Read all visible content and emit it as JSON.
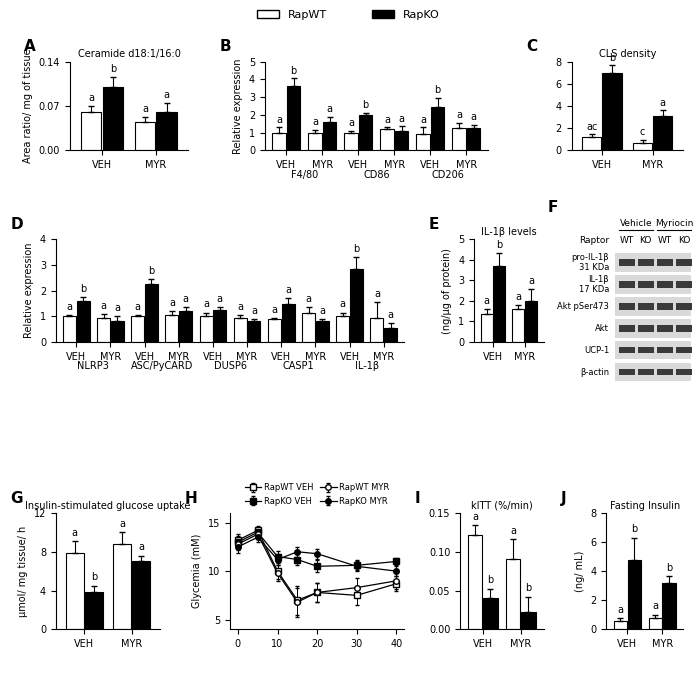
{
  "chart_data": [
    {
      "type": "bar",
      "panel": "A",
      "title": "Ceramide d18:1/16:0",
      "y_label": "Area ratio/ mg of tissue",
      "legend": "top",
      "categories": [
        "VEH",
        "MYR"
      ],
      "series": [
        {
          "name": "RapWT",
          "color": "#ffffff",
          "values": [
            0.06,
            0.045
          ],
          "errors": [
            0.01,
            0.008
          ],
          "letters": [
            "a",
            "a"
          ]
        },
        {
          "name": "RapKO",
          "color": "#000000",
          "values": [
            0.1,
            0.061
          ],
          "errors": [
            0.016,
            0.014
          ],
          "letters": [
            "b",
            "a"
          ]
        }
      ],
      "ylim": [
        0,
        0.14
      ],
      "yticks": [
        {
          "value": 0,
          "label": "0.00"
        },
        {
          "value": 0.07,
          "label": "0.07"
        },
        {
          "value": 0.14,
          "label": "0.14"
        }
      ]
    },
    {
      "type": "bar",
      "panel": "B",
      "y_label": "Relative expression",
      "categories": [
        "VEH",
        "MYR",
        "VEH",
        "MYR",
        "VEH",
        "MYR"
      ],
      "groups": [
        "F4/80",
        "CD86",
        "CD206"
      ],
      "series": [
        {
          "name": "RapWT",
          "color": "#ffffff",
          "values": [
            1.0,
            1.0,
            1.0,
            1.2,
            0.95,
            1.25
          ],
          "errors": [
            0.3,
            0.15,
            0.1,
            0.1,
            0.35,
            0.3
          ],
          "letters": [
            "a",
            "a",
            "a",
            "a",
            "a",
            "a"
          ]
        },
        {
          "name": "RapKO",
          "color": "#000000",
          "values": [
            3.6,
            1.6,
            2.0,
            1.1,
            2.45,
            1.25
          ],
          "errors": [
            0.45,
            0.3,
            0.1,
            0.25,
            0.5,
            0.2
          ],
          "letters": [
            "b",
            "a",
            "b",
            "a",
            "b",
            "a"
          ]
        }
      ],
      "ylim": [
        0,
        5
      ],
      "yticks": [
        0,
        1,
        2,
        3,
        4,
        5
      ]
    },
    {
      "type": "bar",
      "panel": "C",
      "title": "CLS density",
      "categories": [
        "VEH",
        "MYR"
      ],
      "series": [
        {
          "name": "RapWT",
          "color": "#ffffff",
          "values": [
            1.2,
            0.7
          ],
          "errors": [
            0.25,
            0.25
          ],
          "letters": [
            "ac",
            "c"
          ]
        },
        {
          "name": "RapKO",
          "color": "#000000",
          "values": [
            7.0,
            3.1
          ],
          "errors": [
            0.65,
            0.5
          ],
          "letters": [
            "b",
            "a"
          ]
        }
      ],
      "ylim": [
        0,
        8
      ],
      "yticks": [
        0,
        2,
        4,
        6,
        8
      ]
    },
    {
      "type": "bar",
      "panel": "D",
      "y_label": "Relative expression",
      "categories": [
        "VEH",
        "MYR",
        "VEH",
        "MYR",
        "VEH",
        "MYR",
        "VEH",
        "MYR",
        "VEH",
        "MYR"
      ],
      "groups": [
        "NLRP3",
        "ASC/PyCARD",
        "DUSP6",
        "CASP1",
        "IL-1β"
      ],
      "series": [
        {
          "name": "RapWT",
          "color": "#ffffff",
          "values": [
            1.0,
            0.95,
            1.0,
            1.05,
            1.0,
            0.95,
            0.9,
            1.15,
            1.0,
            0.95
          ],
          "errors": [
            0.05,
            0.15,
            0.05,
            0.15,
            0.15,
            0.1,
            0.05,
            0.2,
            0.15,
            0.6
          ],
          "letters": [
            "a",
            "a",
            "a",
            "a",
            "a",
            "a",
            "a",
            "a",
            "a",
            "a"
          ]
        },
        {
          "name": "RapKO",
          "color": "#000000",
          "values": [
            1.6,
            0.8,
            2.25,
            1.2,
            1.25,
            0.8,
            1.5,
            0.8,
            2.85,
            0.55
          ],
          "errors": [
            0.15,
            0.2,
            0.2,
            0.15,
            0.1,
            0.1,
            0.2,
            0.1,
            0.45,
            0.2
          ],
          "letters": [
            "b",
            "a",
            "b",
            "a",
            "a",
            "a",
            "a",
            "a",
            "b",
            "a"
          ]
        }
      ],
      "ylim": [
        0,
        4
      ],
      "yticks": [
        0,
        1,
        2,
        3,
        4
      ]
    },
    {
      "type": "bar",
      "panel": "E",
      "title": "IL-1β levels",
      "y_label": "(ng/μg of protein)",
      "categories": [
        "VEH",
        "MYR"
      ],
      "series": [
        {
          "name": "RapWT",
          "color": "#ffffff",
          "values": [
            1.35,
            1.6
          ],
          "errors": [
            0.25,
            0.2
          ],
          "letters": [
            "a",
            "a"
          ]
        },
        {
          "name": "RapKO",
          "color": "#000000",
          "values": [
            3.7,
            2.0
          ],
          "errors": [
            0.65,
            0.6
          ],
          "letters": [
            "b",
            "a"
          ]
        }
      ],
      "ylim": [
        0,
        5
      ],
      "yticks": [
        0,
        1,
        2,
        3,
        4,
        5
      ]
    },
    {
      "type": "blot",
      "panel": "F",
      "title": "Raptor",
      "groups": [
        "Vehicle",
        "Myriocin"
      ],
      "lanes": [
        "WT",
        "KO",
        "WT",
        "KO"
      ],
      "rows": [
        "pro-IL-1β\n31 KDa",
        "IL-1β\n17 KDa",
        "Akt pSer473",
        "Akt",
        "UCP-1",
        "β-actin"
      ]
    },
    {
      "type": "bar",
      "panel": "G",
      "title": "Insulin-stimulated glucose uptake",
      "y_label": "μmol/ mg tissue/ h",
      "categories": [
        "VEH",
        "MYR"
      ],
      "series": [
        {
          "name": "RapWT",
          "color": "#ffffff",
          "values": [
            7.9,
            8.8
          ],
          "errors": [
            1.2,
            1.2
          ],
          "letters": [
            "a",
            "a"
          ]
        },
        {
          "name": "RapKO",
          "color": "#000000",
          "values": [
            3.8,
            7.0
          ],
          "errors": [
            0.7,
            0.6
          ],
          "letters": [
            "b",
            "a"
          ]
        }
      ],
      "ylim": [
        0,
        12
      ],
      "yticks": [
        0,
        4,
        8,
        12
      ]
    },
    {
      "type": "line",
      "panel": "H",
      "y_label": "Glycemia (mM)",
      "legend": "top",
      "x": [
        0,
        5,
        10,
        15,
        20,
        30,
        40
      ],
      "series": [
        {
          "name": "RapWT VEH",
          "marker": "square",
          "color": "#ffffff",
          "values": [
            13.2,
            14.2,
            10.0,
            7.0,
            7.8,
            7.5,
            8.7
          ],
          "errors": [
            0.6,
            0.5,
            0.8,
            1.5,
            1.0,
            1.0,
            0.8
          ]
        },
        {
          "name": "RapKO VEH",
          "marker": "square",
          "color": "#000000",
          "values": [
            13.0,
            14.0,
            11.5,
            11.2,
            10.5,
            10.6,
            11.0
          ],
          "errors": [
            0.6,
            0.5,
            0.6,
            0.6,
            0.6,
            0.5,
            0.4
          ]
        },
        {
          "name": "RapWT MYR",
          "marker": "circle",
          "color": "#ffffff",
          "values": [
            12.8,
            13.8,
            9.8,
            6.8,
            7.8,
            8.3,
            9.0
          ],
          "errors": [
            0.6,
            0.5,
            0.8,
            1.5,
            1.0,
            1.0,
            0.8
          ]
        },
        {
          "name": "RapKO MYR",
          "marker": "circle",
          "color": "#000000",
          "values": [
            12.5,
            13.5,
            11.2,
            12.0,
            11.8,
            10.5,
            10.0
          ],
          "errors": [
            0.6,
            0.5,
            0.6,
            0.5,
            0.5,
            0.5,
            0.5
          ]
        }
      ],
      "xlim": [
        -2,
        42
      ],
      "xticks": [
        0,
        10,
        20,
        30,
        40
      ],
      "ylim": [
        4,
        16
      ],
      "yticks": [
        5,
        10,
        15
      ]
    },
    {
      "type": "bar",
      "panel": "I",
      "title": "kITT (%/min)",
      "categories": [
        "VEH",
        "MYR"
      ],
      "series": [
        {
          "name": "RapWT",
          "color": "#ffffff",
          "values": [
            0.122,
            0.091
          ],
          "errors": [
            0.012,
            0.025
          ],
          "letters": [
            "a",
            "a"
          ]
        },
        {
          "name": "RapKO",
          "color": "#000000",
          "values": [
            0.04,
            0.022
          ],
          "errors": [
            0.012,
            0.02
          ],
          "letters": [
            "b",
            "b"
          ]
        }
      ],
      "ylim": [
        0,
        0.15
      ],
      "yticks": [
        {
          "value": 0,
          "label": "0.00"
        },
        {
          "value": 0.05,
          "label": "0.05"
        },
        {
          "value": 0.1,
          "label": "0.10"
        },
        {
          "value": 0.15,
          "label": "0.15"
        }
      ]
    },
    {
      "type": "bar",
      "panel": "J",
      "title": "Fasting Insulin",
      "y_label": "(ng/ mL)",
      "categories": [
        "VEH",
        "MYR"
      ],
      "series": [
        {
          "name": "RapWT",
          "color": "#ffffff",
          "values": [
            0.6,
            0.75
          ],
          "errors": [
            0.15,
            0.25
          ],
          "letters": [
            "a",
            "a"
          ]
        },
        {
          "name": "RapKO",
          "color": "#000000",
          "values": [
            4.8,
            3.2
          ],
          "errors": [
            1.5,
            0.45
          ],
          "letters": [
            "b",
            "b"
          ]
        }
      ],
      "ylim": [
        0,
        8
      ],
      "yticks": [
        0,
        2,
        4,
        6,
        8
      ]
    }
  ]
}
